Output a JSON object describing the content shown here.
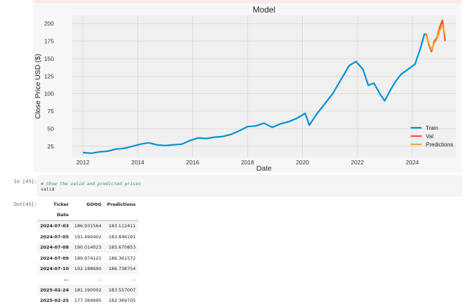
{
  "prompts": {
    "in": "In [45]:",
    "out": "Out[45]:"
  },
  "code": {
    "comment": "# Show the valid and predicted prices",
    "line": "valid"
  },
  "chart_data": {
    "type": "line",
    "title": "Model",
    "xlabel": "Date",
    "ylabel": "Close Price USD ($)",
    "xlim": [
      2011.6,
      2025.6
    ],
    "ylim": [
      9,
      212
    ],
    "xticks": [
      2012,
      2014,
      2016,
      2018,
      2020,
      2022,
      2024
    ],
    "yticks": [
      25,
      50,
      75,
      100,
      125,
      150,
      175,
      200
    ],
    "grid": true,
    "legend_position": "bottom-right",
    "series": [
      {
        "name": "Train",
        "color": "#008fd5",
        "x": [
          2012.0,
          2012.3,
          2012.6,
          2012.9,
          2013.2,
          2013.5,
          2013.8,
          2014.1,
          2014.4,
          2014.7,
          2015.0,
          2015.3,
          2015.6,
          2015.9,
          2016.2,
          2016.5,
          2016.8,
          2017.1,
          2017.4,
          2017.7,
          2018.0,
          2018.3,
          2018.6,
          2018.9,
          2019.2,
          2019.5,
          2019.8,
          2020.1,
          2020.25,
          2020.5,
          2020.8,
          2021.1,
          2021.4,
          2021.7,
          2021.95,
          2022.2,
          2022.4,
          2022.6,
          2022.85,
          2023.0,
          2023.2,
          2023.4,
          2023.6,
          2023.85,
          2024.1,
          2024.3,
          2024.45
        ],
        "y": [
          16,
          15,
          17,
          18,
          21,
          22,
          25,
          28,
          30,
          27,
          26,
          27,
          28,
          33,
          37,
          36,
          38,
          39,
          42,
          47,
          53,
          54,
          58,
          52,
          57,
          60,
          65,
          72,
          55,
          70,
          85,
          100,
          120,
          140,
          146,
          135,
          112,
          115,
          98,
          90,
          105,
          118,
          128,
          135,
          142,
          165,
          186
        ]
      },
      {
        "name": "Val",
        "color": "#fc4f30",
        "x": [
          2024.5,
          2024.6,
          2024.7,
          2024.8,
          2024.9,
          2025.0,
          2025.1,
          2025.2
        ],
        "y": [
          186,
          170,
          160,
          175,
          180,
          195,
          205,
          175
        ]
      },
      {
        "name": "Predictions",
        "color": "#e5ae38",
        "x": [
          2024.5,
          2024.6,
          2024.7,
          2024.8,
          2024.9,
          2025.0,
          2025.1,
          2025.2
        ],
        "y": [
          183,
          172,
          163,
          172,
          178,
          190,
          198,
          183
        ]
      }
    ]
  },
  "table": {
    "columns": [
      "Ticker",
      "GOOG",
      "Predictions"
    ],
    "index_name": "Date",
    "rows": [
      [
        "2024-07-03",
        "186.931564",
        "183.112411"
      ],
      [
        "2024-07-05",
        "191.490402",
        "183.846191"
      ],
      [
        "2024-07-08",
        "190.014023",
        "185.670853"
      ],
      [
        "2024-07-09",
        "189.974121",
        "186.361572"
      ],
      [
        "2024-07-10",
        "192.188690",
        "186.738754"
      ],
      [
        "...",
        "...",
        "..."
      ],
      [
        "2025-02-24",
        "181.190002",
        "183.557007"
      ],
      [
        "2025-02-25",
        "177.369995",
        "182.369705"
      ]
    ]
  }
}
